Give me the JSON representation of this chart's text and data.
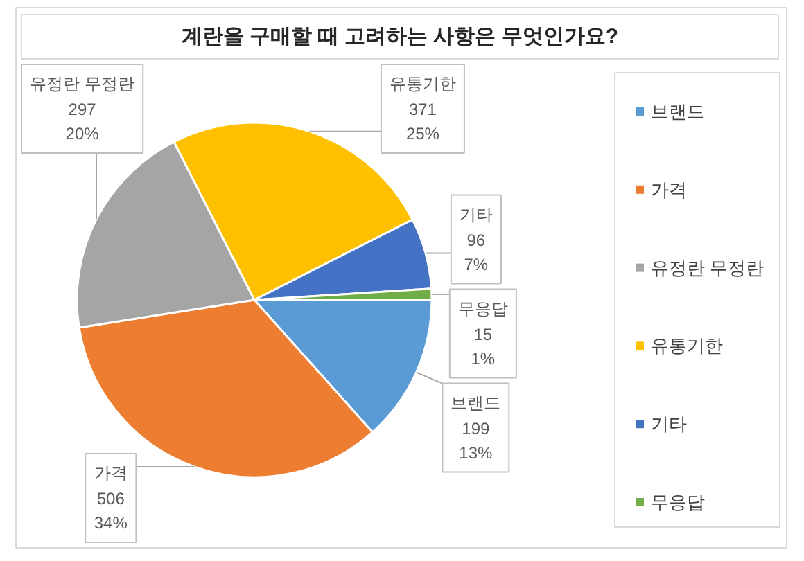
{
  "chart_data": {
    "type": "pie",
    "title": "계란을 구매할 때 고려하는 사항은 무엇인가요?",
    "categories": [
      "브랜드",
      "가격",
      "유정란 무정란",
      "유통기한",
      "기타",
      "무응답"
    ],
    "values": [
      199,
      506,
      297,
      371,
      96,
      15
    ],
    "colors": [
      "#5b9bd5",
      "#ed7d31",
      "#a5a5a5",
      "#ffc000",
      "#4472c4",
      "#70ad47"
    ],
    "value_labels": [
      "199\n13%",
      "506\n34%",
      "297\n20%",
      "371\n25%",
      "96\n7%",
      "15\n1%"
    ],
    "legend": "right"
  }
}
